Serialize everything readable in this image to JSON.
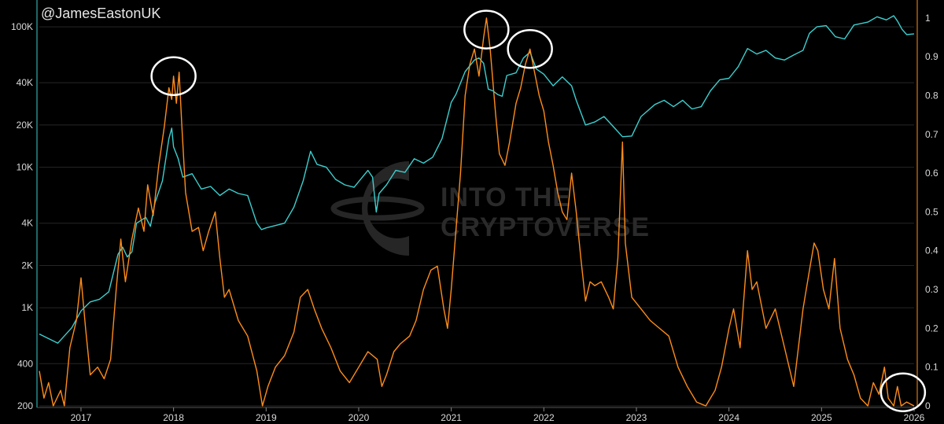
{
  "chart_data": {
    "type": "line",
    "handle": "@JamesEastonUK",
    "watermark": [
      "INTO THE",
      "CRYPTOVERSE"
    ],
    "x_ticks": [
      "2017",
      "2018",
      "2019",
      "2020",
      "2021",
      "2022",
      "2023",
      "2024",
      "2025",
      "2026"
    ],
    "left_axis": {
      "scale": "log",
      "range": [
        200,
        140000
      ],
      "ticks": [
        {
          "v": 100000,
          "label": "100K"
        },
        {
          "v": 40000,
          "label": "40K"
        },
        {
          "v": 20000,
          "label": "20K"
        },
        {
          "v": 10000,
          "label": "10K"
        },
        {
          "v": 4000,
          "label": "4K"
        },
        {
          "v": 2000,
          "label": "2K"
        },
        {
          "v": 1000,
          "label": "1K"
        },
        {
          "v": 400,
          "label": "400"
        },
        {
          "v": 200,
          "label": "200"
        }
      ]
    },
    "right_axis": {
      "scale": "linear",
      "range": [
        0,
        1.03
      ],
      "ticks": [
        {
          "v": 1,
          "label": "1"
        },
        {
          "v": 0.9,
          "label": "0.9"
        },
        {
          "v": 0.8,
          "label": "0.8"
        },
        {
          "v": 0.7,
          "label": "0.7"
        },
        {
          "v": 0.6,
          "label": "0.6"
        },
        {
          "v": 0.5,
          "label": "0.5"
        },
        {
          "v": 0.4,
          "label": "0.4"
        },
        {
          "v": 0.3,
          "label": "0.3"
        },
        {
          "v": 0.2,
          "label": "0.2"
        },
        {
          "v": 0.1,
          "label": "0.1"
        },
        {
          "v": 0,
          "label": "0"
        }
      ]
    },
    "x_range": [
      2016.55,
      2026.0
    ],
    "grid": true,
    "colors": {
      "price": "#3ccfcf",
      "oscillator": "#ff8c1a",
      "circles": "#ffffff",
      "grid": "#262626"
    },
    "series": [
      {
        "axis": "left",
        "color": "#3ccfcf",
        "points": [
          [
            2016.55,
            650
          ],
          [
            2016.75,
            560
          ],
          [
            2016.9,
            720
          ],
          [
            2017.0,
            950
          ],
          [
            2017.1,
            1100
          ],
          [
            2017.2,
            1150
          ],
          [
            2017.3,
            1300
          ],
          [
            2017.4,
            2400
          ],
          [
            2017.45,
            2700
          ],
          [
            2017.5,
            2300
          ],
          [
            2017.55,
            2500
          ],
          [
            2017.6,
            4000
          ],
          [
            2017.7,
            4400
          ],
          [
            2017.75,
            3800
          ],
          [
            2017.8,
            5600
          ],
          [
            2017.88,
            8000
          ],
          [
            2017.95,
            16000
          ],
          [
            2017.98,
            19000
          ],
          [
            2018.0,
            14000
          ],
          [
            2018.05,
            11500
          ],
          [
            2018.1,
            8500
          ],
          [
            2018.2,
            9000
          ],
          [
            2018.3,
            7000
          ],
          [
            2018.4,
            7300
          ],
          [
            2018.5,
            6300
          ],
          [
            2018.6,
            7000
          ],
          [
            2018.7,
            6500
          ],
          [
            2018.8,
            6300
          ],
          [
            2018.9,
            4000
          ],
          [
            2018.95,
            3600
          ],
          [
            2019.0,
            3700
          ],
          [
            2019.2,
            4000
          ],
          [
            2019.3,
            5200
          ],
          [
            2019.4,
            8000
          ],
          [
            2019.48,
            13000
          ],
          [
            2019.55,
            10500
          ],
          [
            2019.65,
            10000
          ],
          [
            2019.75,
            8200
          ],
          [
            2019.85,
            7500
          ],
          [
            2019.95,
            7200
          ],
          [
            2020.1,
            9500
          ],
          [
            2020.15,
            8500
          ],
          [
            2020.19,
            4800
          ],
          [
            2020.22,
            6500
          ],
          [
            2020.3,
            7500
          ],
          [
            2020.4,
            9500
          ],
          [
            2020.5,
            9200
          ],
          [
            2020.6,
            11500
          ],
          [
            2020.7,
            10700
          ],
          [
            2020.8,
            11800
          ],
          [
            2020.9,
            16000
          ],
          [
            2021.0,
            29000
          ],
          [
            2021.05,
            33000
          ],
          [
            2021.15,
            48000
          ],
          [
            2021.25,
            58000
          ],
          [
            2021.3,
            60000
          ],
          [
            2021.35,
            55000
          ],
          [
            2021.4,
            36000
          ],
          [
            2021.45,
            35000
          ],
          [
            2021.5,
            33000
          ],
          [
            2021.55,
            32000
          ],
          [
            2021.6,
            45000
          ],
          [
            2021.7,
            47000
          ],
          [
            2021.78,
            60000
          ],
          [
            2021.85,
            66000
          ],
          [
            2021.92,
            50000
          ],
          [
            2022.0,
            46000
          ],
          [
            2022.1,
            38000
          ],
          [
            2022.2,
            44000
          ],
          [
            2022.3,
            38000
          ],
          [
            2022.35,
            30000
          ],
          [
            2022.45,
            20000
          ],
          [
            2022.55,
            21000
          ],
          [
            2022.65,
            23000
          ],
          [
            2022.75,
            19500
          ],
          [
            2022.85,
            16500
          ],
          [
            2022.95,
            16700
          ],
          [
            2023.05,
            23000
          ],
          [
            2023.2,
            28000
          ],
          [
            2023.3,
            30000
          ],
          [
            2023.4,
            27000
          ],
          [
            2023.5,
            30000
          ],
          [
            2023.6,
            26000
          ],
          [
            2023.7,
            27000
          ],
          [
            2023.8,
            35000
          ],
          [
            2023.9,
            42000
          ],
          [
            2024.0,
            43000
          ],
          [
            2024.1,
            52000
          ],
          [
            2024.2,
            70000
          ],
          [
            2024.3,
            64000
          ],
          [
            2024.4,
            68000
          ],
          [
            2024.5,
            60000
          ],
          [
            2024.6,
            58000
          ],
          [
            2024.7,
            63000
          ],
          [
            2024.8,
            68000
          ],
          [
            2024.87,
            90000
          ],
          [
            2024.95,
            100000
          ],
          [
            2025.05,
            102000
          ],
          [
            2025.15,
            85000
          ],
          [
            2025.25,
            82000
          ],
          [
            2025.35,
            103000
          ],
          [
            2025.5,
            108000
          ],
          [
            2025.6,
            118000
          ],
          [
            2025.7,
            112000
          ],
          [
            2025.78,
            120000
          ],
          [
            2025.82,
            110000
          ],
          [
            2025.87,
            96000
          ],
          [
            2025.92,
            88000
          ],
          [
            2026.0,
            89000
          ]
        ]
      },
      {
        "axis": "right",
        "color": "#ff8c1a",
        "points": [
          [
            2016.55,
            0.09
          ],
          [
            2016.6,
            0.02
          ],
          [
            2016.65,
            0.06
          ],
          [
            2016.7,
            0.0
          ],
          [
            2016.78,
            0.04
          ],
          [
            2016.82,
            0.0
          ],
          [
            2016.88,
            0.15
          ],
          [
            2016.95,
            0.22
          ],
          [
            2017.0,
            0.33
          ],
          [
            2017.05,
            0.2
          ],
          [
            2017.1,
            0.08
          ],
          [
            2017.18,
            0.1
          ],
          [
            2017.25,
            0.07
          ],
          [
            2017.32,
            0.12
          ],
          [
            2017.38,
            0.3
          ],
          [
            2017.43,
            0.43
          ],
          [
            2017.48,
            0.32
          ],
          [
            2017.55,
            0.43
          ],
          [
            2017.62,
            0.51
          ],
          [
            2017.68,
            0.45
          ],
          [
            2017.72,
            0.57
          ],
          [
            2017.78,
            0.49
          ],
          [
            2017.84,
            0.62
          ],
          [
            2017.9,
            0.72
          ],
          [
            2017.95,
            0.82
          ],
          [
            2017.98,
            0.79
          ],
          [
            2018.0,
            0.85
          ],
          [
            2018.03,
            0.78
          ],
          [
            2018.06,
            0.86
          ],
          [
            2018.09,
            0.72
          ],
          [
            2018.13,
            0.55
          ],
          [
            2018.2,
            0.45
          ],
          [
            2018.27,
            0.46
          ],
          [
            2018.32,
            0.4
          ],
          [
            2018.38,
            0.45
          ],
          [
            2018.45,
            0.5
          ],
          [
            2018.5,
            0.38
          ],
          [
            2018.55,
            0.28
          ],
          [
            2018.6,
            0.3
          ],
          [
            2018.7,
            0.22
          ],
          [
            2018.8,
            0.18
          ],
          [
            2018.9,
            0.09
          ],
          [
            2018.96,
            0.0
          ],
          [
            2019.02,
            0.05
          ],
          [
            2019.1,
            0.1
          ],
          [
            2019.2,
            0.13
          ],
          [
            2019.3,
            0.19
          ],
          [
            2019.37,
            0.28
          ],
          [
            2019.45,
            0.3
          ],
          [
            2019.52,
            0.25
          ],
          [
            2019.6,
            0.2
          ],
          [
            2019.7,
            0.15
          ],
          [
            2019.8,
            0.09
          ],
          [
            2019.9,
            0.06
          ],
          [
            2020.0,
            0.1
          ],
          [
            2020.1,
            0.14
          ],
          [
            2020.2,
            0.12
          ],
          [
            2020.25,
            0.05
          ],
          [
            2020.3,
            0.08
          ],
          [
            2020.38,
            0.14
          ],
          [
            2020.45,
            0.16
          ],
          [
            2020.55,
            0.18
          ],
          [
            2020.62,
            0.22
          ],
          [
            2020.7,
            0.3
          ],
          [
            2020.78,
            0.35
          ],
          [
            2020.85,
            0.36
          ],
          [
            2020.92,
            0.25
          ],
          [
            2020.96,
            0.2
          ],
          [
            2021.0,
            0.3
          ],
          [
            2021.05,
            0.45
          ],
          [
            2021.1,
            0.6
          ],
          [
            2021.15,
            0.8
          ],
          [
            2021.2,
            0.88
          ],
          [
            2021.25,
            0.92
          ],
          [
            2021.3,
            0.85
          ],
          [
            2021.35,
            0.95
          ],
          [
            2021.38,
            1.0
          ],
          [
            2021.42,
            0.92
          ],
          [
            2021.48,
            0.75
          ],
          [
            2021.52,
            0.65
          ],
          [
            2021.58,
            0.62
          ],
          [
            2021.63,
            0.68
          ],
          [
            2021.7,
            0.78
          ],
          [
            2021.75,
            0.82
          ],
          [
            2021.8,
            0.88
          ],
          [
            2021.85,
            0.92
          ],
          [
            2021.9,
            0.86
          ],
          [
            2021.95,
            0.8
          ],
          [
            2022.0,
            0.76
          ],
          [
            2022.05,
            0.68
          ],
          [
            2022.1,
            0.62
          ],
          [
            2022.15,
            0.55
          ],
          [
            2022.2,
            0.5
          ],
          [
            2022.25,
            0.48
          ],
          [
            2022.3,
            0.6
          ],
          [
            2022.35,
            0.5
          ],
          [
            2022.4,
            0.38
          ],
          [
            2022.45,
            0.27
          ],
          [
            2022.5,
            0.32
          ],
          [
            2022.55,
            0.31
          ],
          [
            2022.62,
            0.32
          ],
          [
            2022.7,
            0.28
          ],
          [
            2022.75,
            0.25
          ],
          [
            2022.8,
            0.38
          ],
          [
            2022.85,
            0.68
          ],
          [
            2022.88,
            0.42
          ],
          [
            2022.95,
            0.28
          ],
          [
            2023.05,
            0.25
          ],
          [
            2023.15,
            0.22
          ],
          [
            2023.25,
            0.2
          ],
          [
            2023.35,
            0.18
          ],
          [
            2023.45,
            0.1
          ],
          [
            2023.55,
            0.05
          ],
          [
            2023.65,
            0.01
          ],
          [
            2023.75,
            0.0
          ],
          [
            2023.85,
            0.04
          ],
          [
            2023.92,
            0.1
          ],
          [
            2024.0,
            0.2
          ],
          [
            2024.05,
            0.25
          ],
          [
            2024.12,
            0.15
          ],
          [
            2024.2,
            0.4
          ],
          [
            2024.25,
            0.3
          ],
          [
            2024.3,
            0.32
          ],
          [
            2024.4,
            0.2
          ],
          [
            2024.5,
            0.25
          ],
          [
            2024.6,
            0.15
          ],
          [
            2024.7,
            0.05
          ],
          [
            2024.8,
            0.25
          ],
          [
            2024.87,
            0.35
          ],
          [
            2024.92,
            0.42
          ],
          [
            2024.96,
            0.4
          ],
          [
            2025.02,
            0.3
          ],
          [
            2025.08,
            0.25
          ],
          [
            2025.14,
            0.38
          ],
          [
            2025.2,
            0.2
          ],
          [
            2025.28,
            0.12
          ],
          [
            2025.35,
            0.08
          ],
          [
            2025.42,
            0.02
          ],
          [
            2025.5,
            0.0
          ],
          [
            2025.56,
            0.06
          ],
          [
            2025.62,
            0.03
          ],
          [
            2025.68,
            0.1
          ],
          [
            2025.72,
            0.02
          ],
          [
            2025.78,
            0.0
          ],
          [
            2025.82,
            0.05
          ],
          [
            2025.86,
            0.0
          ],
          [
            2025.92,
            0.01
          ],
          [
            2026.0,
            0.0
          ]
        ]
      }
    ],
    "highlight_circles": [
      [
        2018.0,
        0.85
      ],
      [
        2021.38,
        0.97
      ],
      [
        2021.85,
        0.92
      ],
      [
        2025.88,
        0.035
      ]
    ]
  }
}
